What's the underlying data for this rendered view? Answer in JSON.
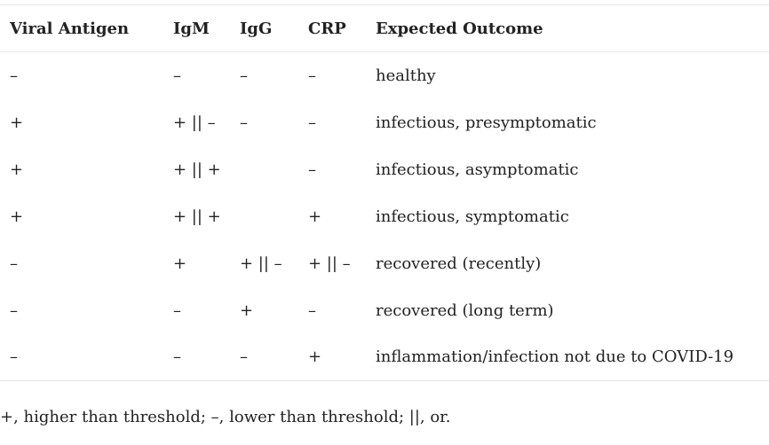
{
  "table": {
    "headers": [
      "Viral Antigen",
      "IgM",
      "IgG",
      "CRP",
      "Expected Outcome"
    ],
    "rows": [
      [
        "–",
        "–",
        "–",
        "–",
        "healthy"
      ],
      [
        "+",
        "+ || –",
        "–",
        "–",
        "infectious, presymptomatic"
      ],
      [
        "+",
        "+ || +",
        "",
        "–",
        "infectious, asymptomatic"
      ],
      [
        "+",
        "+ || +",
        "",
        "+",
        "infectious, symptomatic"
      ],
      [
        "–",
        "+",
        "+ || –",
        "+ || –",
        "recovered (recently)"
      ],
      [
        "–",
        "–",
        "+",
        "–",
        "recovered (long term)"
      ],
      [
        "–",
        "–",
        "–",
        "+",
        "inflammation/infection not due to COVID-19"
      ]
    ]
  },
  "footnote": "+, higher than threshold; –, lower than threshold; ||, or."
}
